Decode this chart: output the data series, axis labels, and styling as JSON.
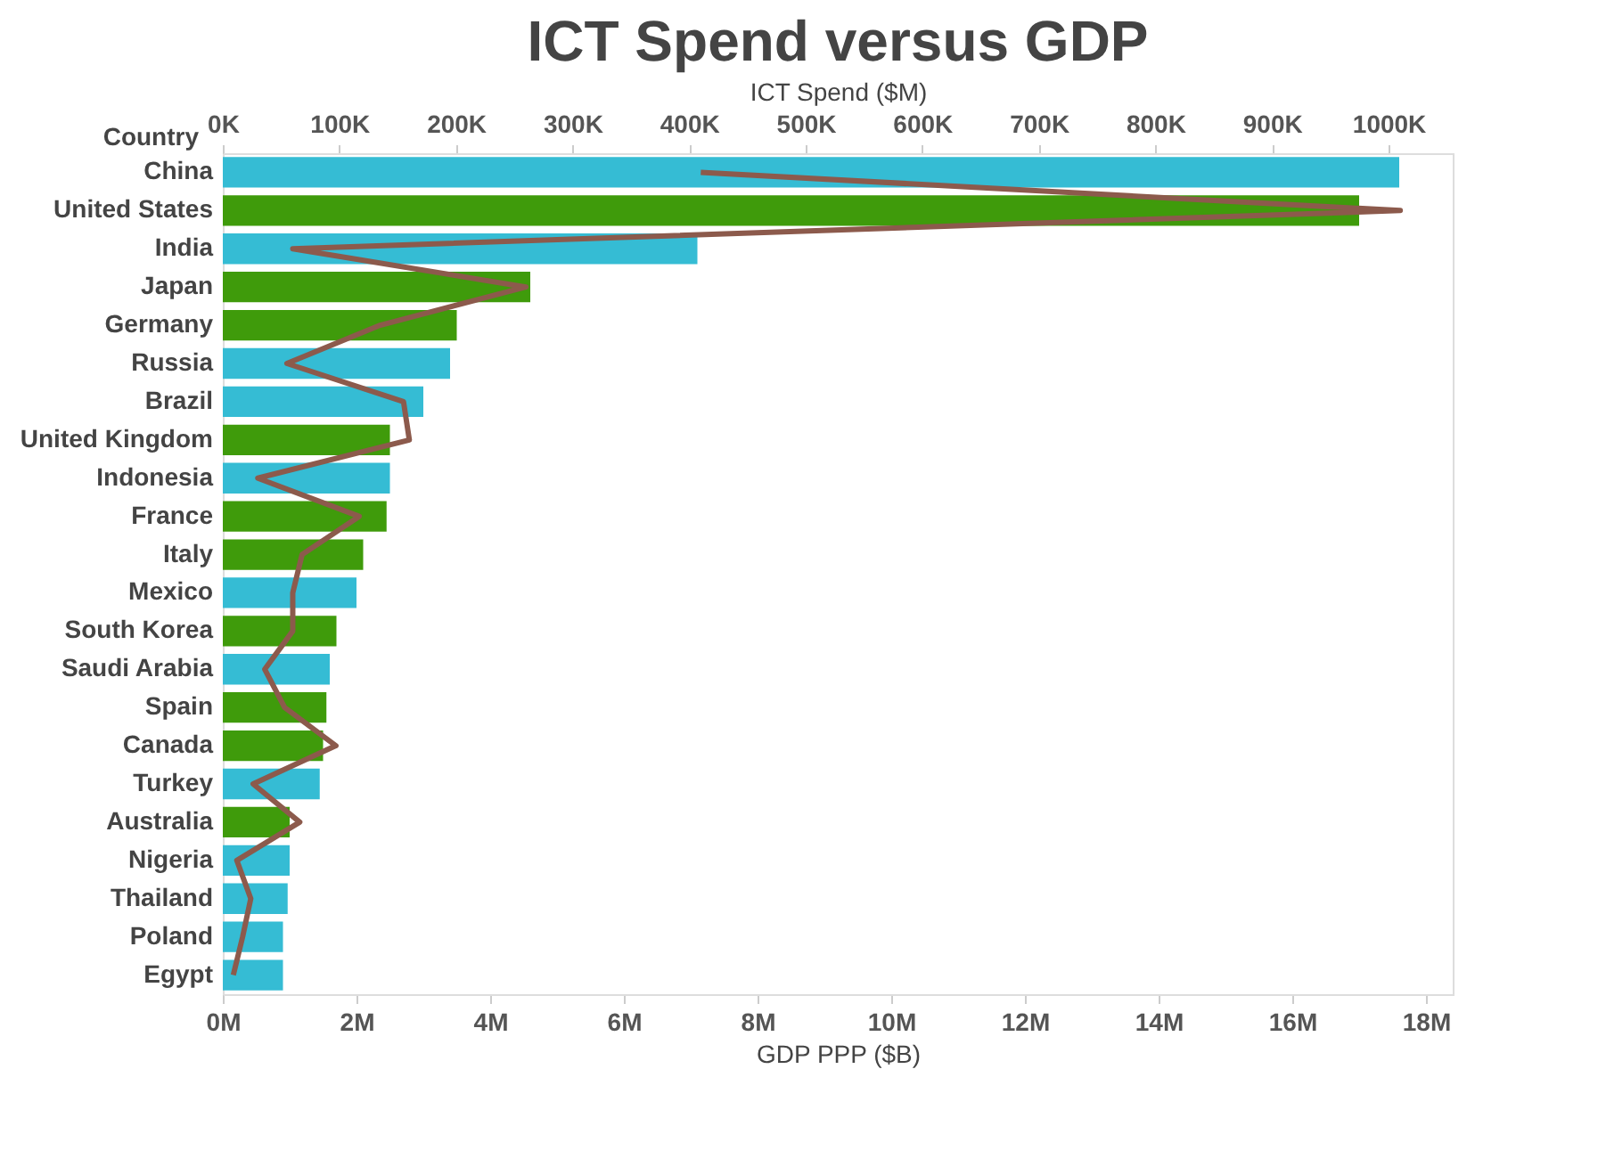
{
  "chart_data": {
    "type": "bar",
    "orientation": "horizontal",
    "title": "ICT Spend versus GDP",
    "xlabel": "GDP PPP ($B)",
    "x2label": "ICT Spend ($M)",
    "ylabel": "Country",
    "categories": [
      "China",
      "United States",
      "India",
      "Japan",
      "Germany",
      "Russia",
      "Brazil",
      "United Kingdom",
      "Indonesia",
      "France",
      "Italy",
      "Mexico",
      "South Korea",
      "Saudi Arabia",
      "Spain",
      "Canada",
      "Turkey",
      "Australia",
      "Nigeria",
      "Thailand",
      "Poland",
      "Egypt"
    ],
    "series": [
      {
        "values": [
          17.6,
          17.0,
          7.1,
          4.6,
          3.5,
          3.4,
          3.0,
          2.5,
          2.5,
          2.45,
          2.1,
          2.0,
          1.7,
          1.6,
          1.55,
          1.5,
          1.45,
          1.0,
          1.0,
          0.97,
          0.9,
          0.9
        ],
        "colors": [
          "#35bcd4",
          "#3f9b0b",
          "#35bcd4",
          "#3f9b0b",
          "#3f9b0b",
          "#35bcd4",
          "#35bcd4",
          "#3f9b0b",
          "#35bcd4",
          "#3f9b0b",
          "#3f9b0b",
          "#35bcd4",
          "#3f9b0b",
          "#35bcd4",
          "#3f9b0b",
          "#3f9b0b",
          "#35bcd4",
          "#3f9b0b",
          "#35bcd4",
          "#35bcd4",
          "#35bcd4",
          "#35bcd4"
        ]
      },
      {
        "type": "line",
        "axis": "x2",
        "color": "#8c5a4c",
        "values": [
          410,
          1010,
          60,
          260,
          135,
          55,
          155,
          160,
          30,
          117,
          68,
          60,
          60,
          36,
          53,
          97,
          26,
          66,
          12,
          24,
          17,
          9
        ]
      }
    ],
    "xlim": [
      0,
      18.4
    ],
    "xticks": [
      {
        "value": 0,
        "label": "0M"
      },
      {
        "value": 2,
        "label": "2M"
      },
      {
        "value": 4,
        "label": "4M"
      },
      {
        "value": 6,
        "label": "6M"
      },
      {
        "value": 8,
        "label": "8M"
      },
      {
        "value": 10,
        "label": "10M"
      },
      {
        "value": 12,
        "label": "12M"
      },
      {
        "value": 14,
        "label": "14M"
      },
      {
        "value": 16,
        "label": "16M"
      },
      {
        "value": 18,
        "label": "18M"
      }
    ],
    "x2lim": [
      0,
      1055
    ],
    "x2ticks": [
      {
        "value": 0,
        "label": "0K"
      },
      {
        "value": 100,
        "label": "100K"
      },
      {
        "value": 200,
        "label": "200K"
      },
      {
        "value": 300,
        "label": "300K"
      },
      {
        "value": 400,
        "label": "400K"
      },
      {
        "value": 500,
        "label": "500K"
      },
      {
        "value": 600,
        "label": "600K"
      },
      {
        "value": 700,
        "label": "700K"
      },
      {
        "value": 800,
        "label": "800K"
      },
      {
        "value": 900,
        "label": "900K"
      },
      {
        "value": 1000,
        "label": "1000K"
      }
    ],
    "grid": false,
    "marker": "none",
    "line_style": "solid"
  }
}
